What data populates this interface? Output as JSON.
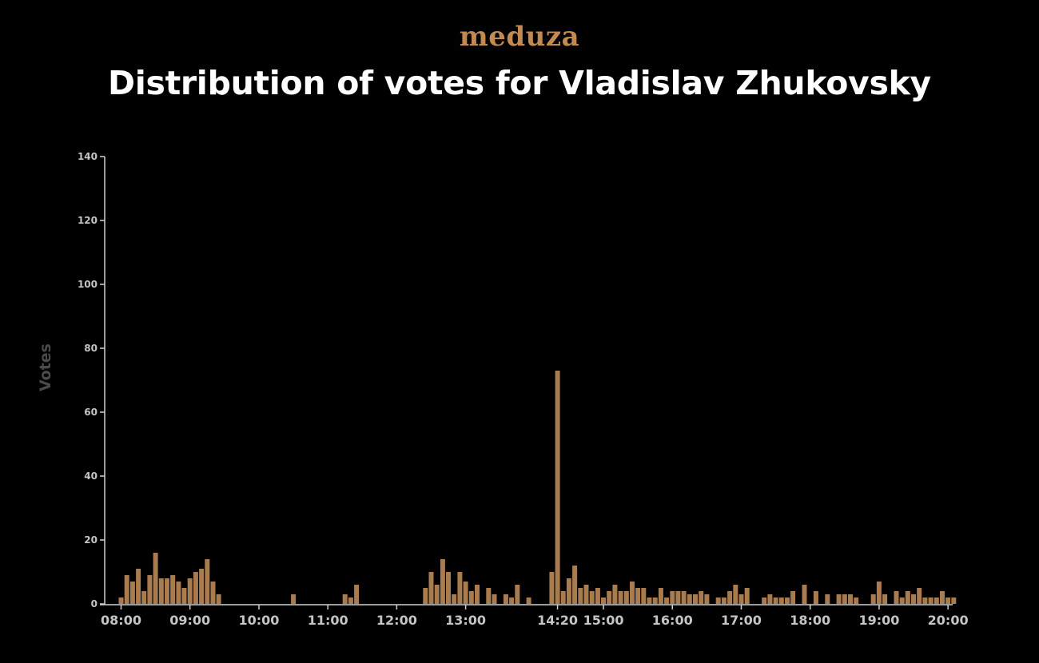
{
  "header": {
    "brand": "meduza",
    "title": "Distribution of votes for Vladislav Zhukovsky"
  },
  "chart_data": {
    "type": "bar",
    "title": "Distribution of votes for Vladislav Zhukovsky",
    "xlabel": "",
    "ylabel": "Votes",
    "ylim": [
      0,
      140
    ],
    "y_ticks": [
      0,
      20,
      40,
      60,
      80,
      100,
      120,
      140
    ],
    "x_unit": "minutes since 08:00 (5-minute bins)",
    "x_ticks": [
      {
        "label": "08:00",
        "t": 0
      },
      {
        "label": "09:00",
        "t": 60
      },
      {
        "label": "10:00",
        "t": 120
      },
      {
        "label": "11:00",
        "t": 180
      },
      {
        "label": "12:00",
        "t": 240
      },
      {
        "label": "13:00",
        "t": 300
      },
      {
        "label": "14:20",
        "t": 380
      },
      {
        "label": "15:00",
        "t": 420
      },
      {
        "label": "16:00",
        "t": 480
      },
      {
        "label": "17:00",
        "t": 540
      },
      {
        "label": "18:00",
        "t": 600
      },
      {
        "label": "19:00",
        "t": 660
      },
      {
        "label": "20:00",
        "t": 720
      }
    ],
    "bar_color": "#a87c4f",
    "grid": false,
    "series": [
      {
        "values": [
          [
            0,
            2
          ],
          [
            5,
            9
          ],
          [
            10,
            7
          ],
          [
            15,
            11
          ],
          [
            20,
            4
          ],
          [
            25,
            9
          ],
          [
            30,
            16
          ],
          [
            35,
            8
          ],
          [
            40,
            8
          ],
          [
            45,
            9
          ],
          [
            50,
            7
          ],
          [
            55,
            5
          ],
          [
            60,
            8
          ],
          [
            65,
            10
          ],
          [
            70,
            11
          ],
          [
            75,
            14
          ],
          [
            80,
            7
          ],
          [
            85,
            3
          ],
          [
            150,
            3
          ],
          [
            195,
            3
          ],
          [
            200,
            2
          ],
          [
            205,
            6
          ],
          [
            265,
            5
          ],
          [
            270,
            10
          ],
          [
            275,
            6
          ],
          [
            280,
            14
          ],
          [
            285,
            10
          ],
          [
            290,
            3
          ],
          [
            295,
            10
          ],
          [
            300,
            7
          ],
          [
            305,
            4
          ],
          [
            310,
            6
          ],
          [
            320,
            5
          ],
          [
            325,
            3
          ],
          [
            335,
            3
          ],
          [
            340,
            2
          ],
          [
            345,
            6
          ],
          [
            355,
            2
          ],
          [
            375,
            10
          ],
          [
            380,
            73
          ],
          [
            385,
            4
          ],
          [
            390,
            8
          ],
          [
            395,
            12
          ],
          [
            400,
            5
          ],
          [
            405,
            6
          ],
          [
            410,
            4
          ],
          [
            415,
            5
          ],
          [
            420,
            2
          ],
          [
            425,
            4
          ],
          [
            430,
            6
          ],
          [
            435,
            4
          ],
          [
            440,
            4
          ],
          [
            445,
            7
          ],
          [
            450,
            5
          ],
          [
            455,
            5
          ],
          [
            460,
            2
          ],
          [
            465,
            2
          ],
          [
            470,
            5
          ],
          [
            475,
            2
          ],
          [
            480,
            4
          ],
          [
            485,
            4
          ],
          [
            490,
            4
          ],
          [
            495,
            3
          ],
          [
            500,
            3
          ],
          [
            505,
            4
          ],
          [
            510,
            3
          ],
          [
            520,
            2
          ],
          [
            525,
            2
          ],
          [
            530,
            4
          ],
          [
            535,
            6
          ],
          [
            540,
            3
          ],
          [
            545,
            5
          ],
          [
            560,
            2
          ],
          [
            565,
            3
          ],
          [
            570,
            2
          ],
          [
            575,
            2
          ],
          [
            580,
            2
          ],
          [
            585,
            4
          ],
          [
            595,
            6
          ],
          [
            605,
            4
          ],
          [
            615,
            3
          ],
          [
            625,
            3
          ],
          [
            630,
            3
          ],
          [
            635,
            3
          ],
          [
            640,
            2
          ],
          [
            655,
            3
          ],
          [
            660,
            7
          ],
          [
            665,
            3
          ],
          [
            675,
            4
          ],
          [
            680,
            2
          ],
          [
            685,
            4
          ],
          [
            690,
            3
          ],
          [
            695,
            5
          ],
          [
            700,
            2
          ],
          [
            705,
            2
          ],
          [
            710,
            2
          ],
          [
            715,
            4
          ],
          [
            720,
            2
          ],
          [
            725,
            2
          ]
        ]
      }
    ]
  }
}
